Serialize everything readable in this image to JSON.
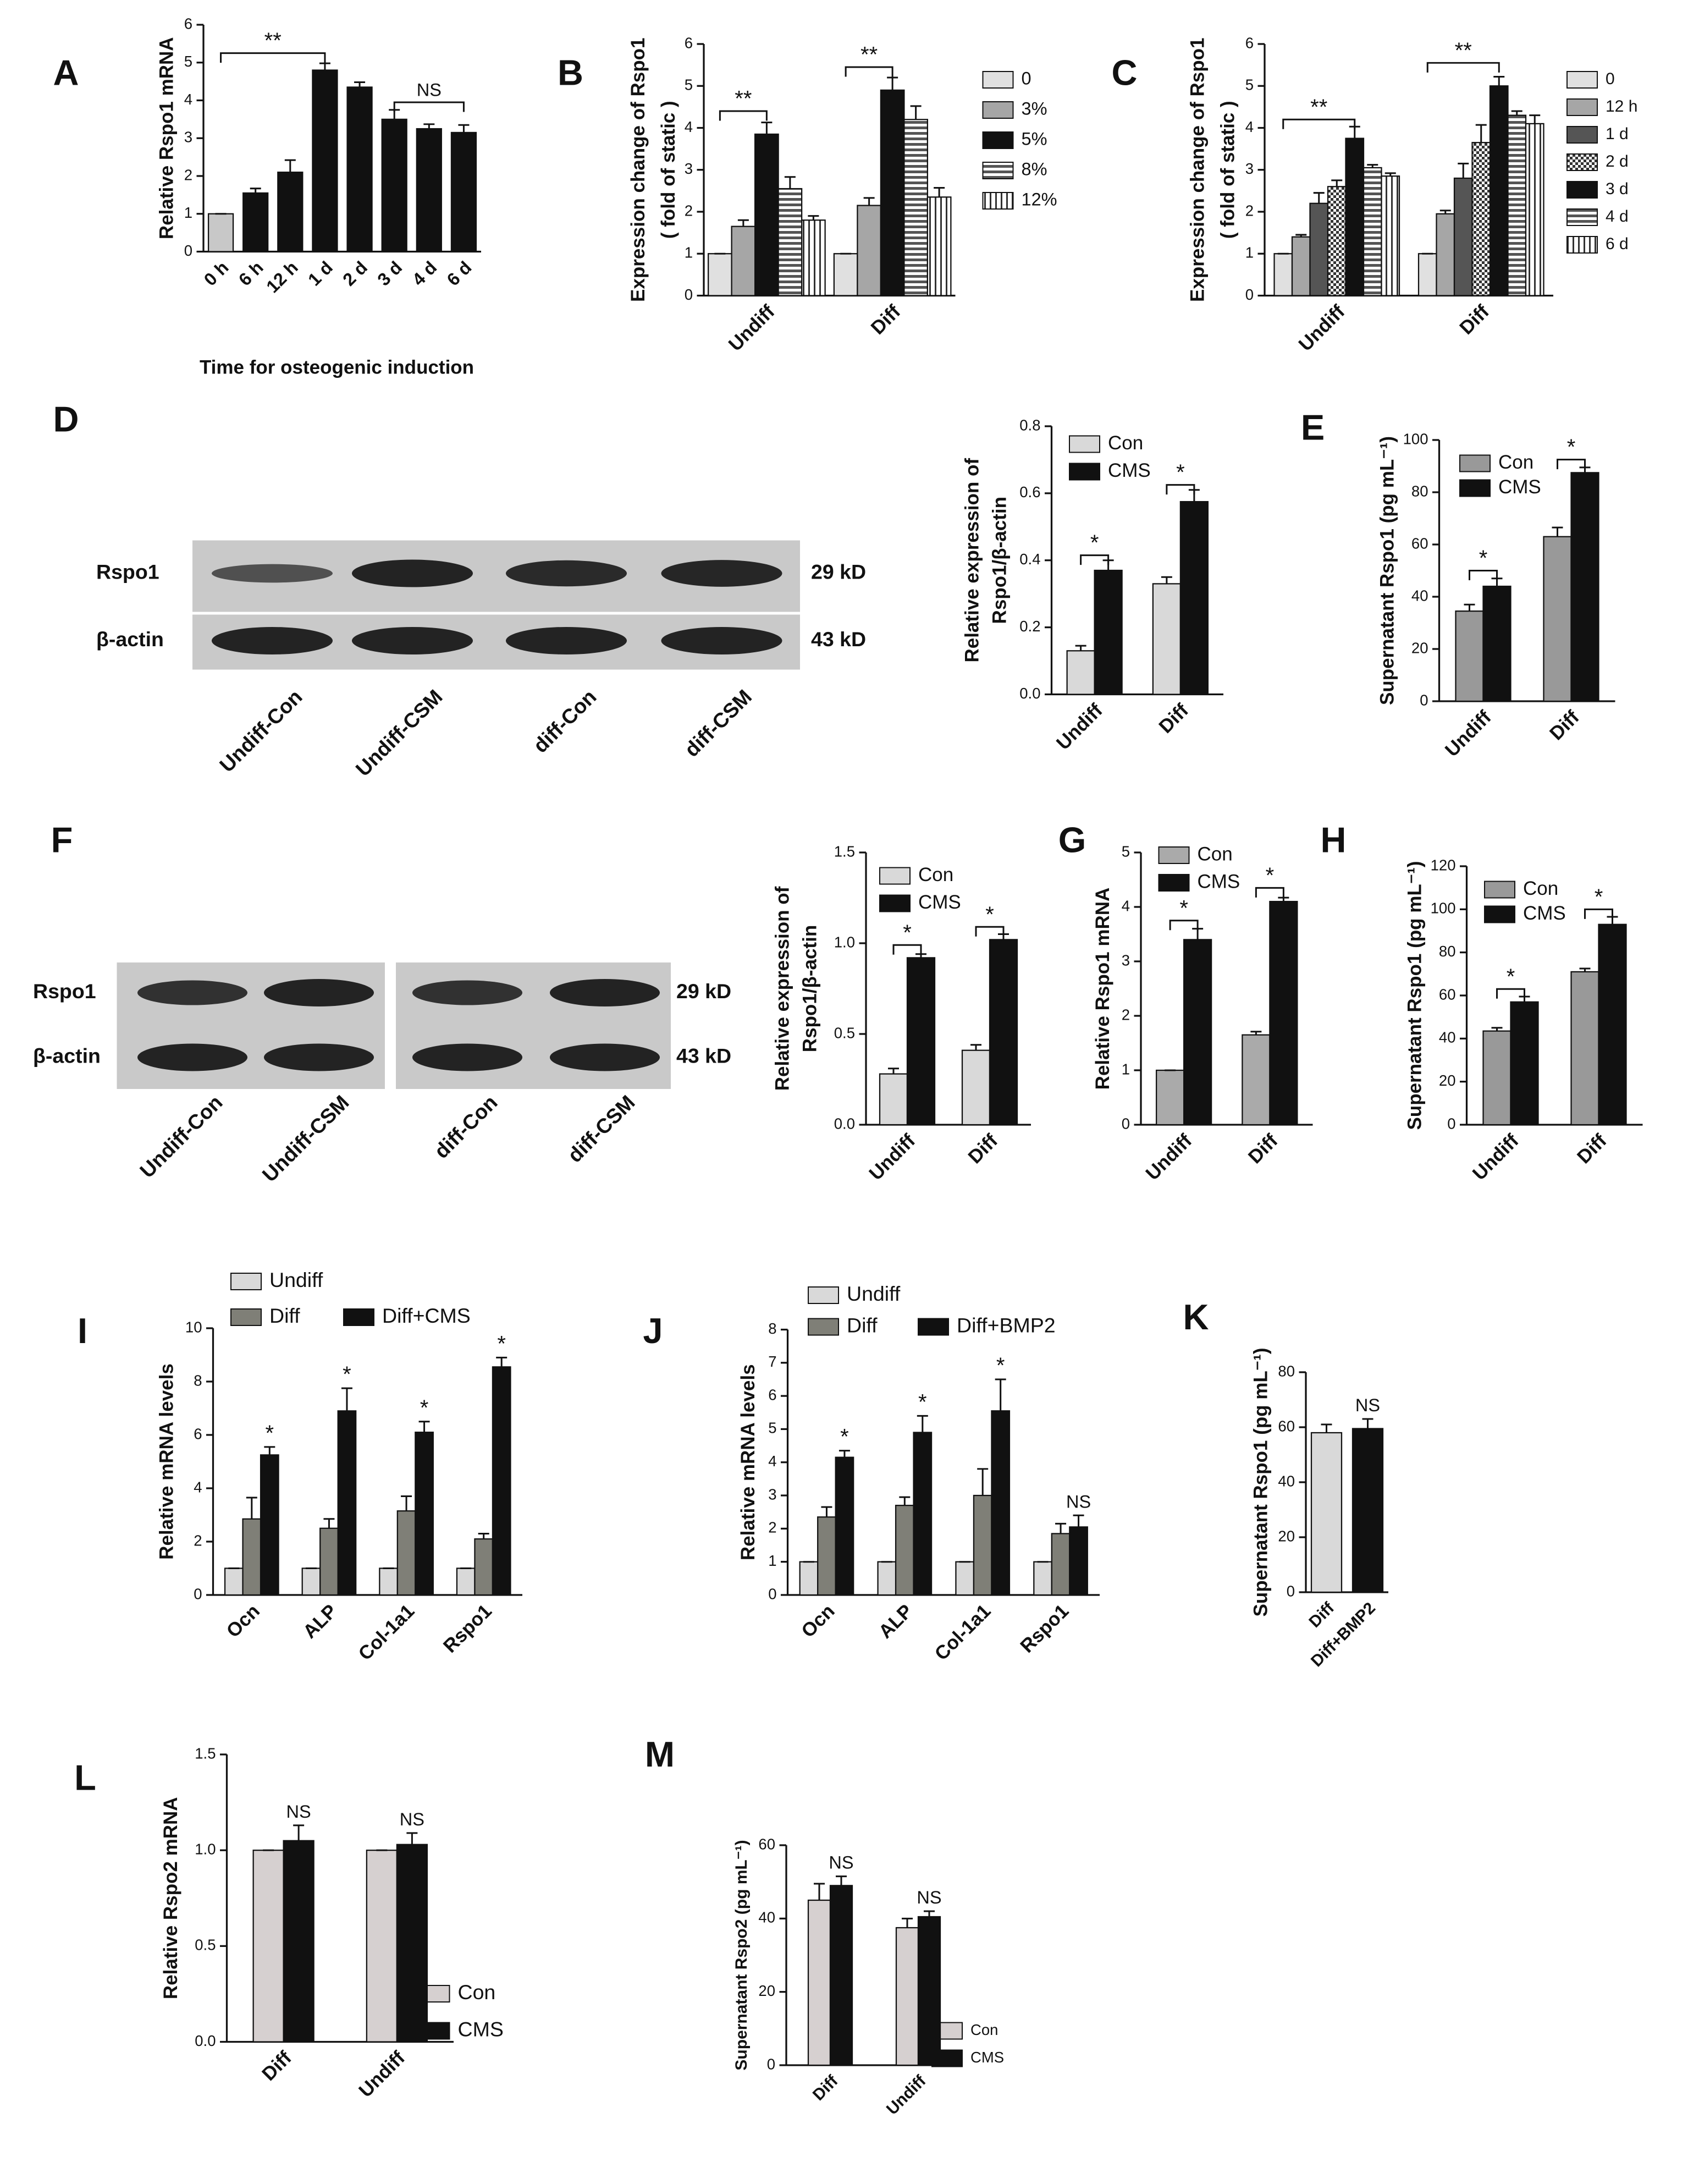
{
  "chart_data": [
    {
      "type": "bar",
      "panel": "A",
      "ylabel": "Relative Rspo1 mRNA",
      "xlabel": "Time for osteogenic induction",
      "categories": [
        "0 h",
        "6 h",
        "12 h",
        "1 d",
        "2 d",
        "3 d",
        "4 d",
        "6 d"
      ],
      "values": [
        1,
        1.55,
        2.1,
        4.8,
        4.35,
        3.5,
        3.25,
        3.15
      ],
      "errors": [
        0,
        0.12,
        0.32,
        0.18,
        0.13,
        0.25,
        0.12,
        0.2
      ],
      "colors": [
        "#c8c8c8",
        "#111111",
        "#111111",
        "#111111",
        "#111111",
        "#111111",
        "#111111",
        "#111111"
      ],
      "ylim": [
        0,
        6
      ],
      "yticks": [
        0,
        1,
        2,
        3,
        4,
        5,
        6
      ],
      "annotations": [
        "**",
        "NS"
      ]
    },
    {
      "type": "bar",
      "panel": "B",
      "ylabel": [
        "Expression change of Rspo1",
        "( fold of static )"
      ],
      "categories": [
        "Undiff",
        "Diff"
      ],
      "series": [
        {
          "name": "0",
          "color": "#e0e0e0",
          "values": [
            1,
            1
          ],
          "errors": [
            0,
            0
          ]
        },
        {
          "name": "3%",
          "color": "#a6a6a6",
          "values": [
            1.65,
            2.15
          ],
          "errors": [
            0.15,
            0.18
          ]
        },
        {
          "name": "5%",
          "color": "#111111",
          "values": [
            3.85,
            4.9
          ],
          "errors": [
            0.28,
            0.3
          ]
        },
        {
          "name": "8%",
          "color": "#777777",
          "hatch": "horizontal",
          "values": [
            2.55,
            4.2
          ],
          "errors": [
            0.28,
            0.32
          ]
        },
        {
          "name": "12%",
          "color": "#ffffff",
          "hatch": "vertical",
          "values": [
            1.8,
            2.35
          ],
          "errors": [
            0.1,
            0.22
          ]
        }
      ],
      "ylim": [
        0,
        6
      ],
      "yticks": [
        0,
        1,
        2,
        3,
        4,
        5,
        6
      ],
      "annotations": [
        "**",
        "**"
      ]
    },
    {
      "type": "bar",
      "panel": "C",
      "ylabel": [
        "Expression change of Rspo1",
        "( fold of static )"
      ],
      "categories": [
        "Undiff",
        "Diff"
      ],
      "series": [
        {
          "name": "0",
          "color": "#e0e0e0",
          "values": [
            1,
            1
          ],
          "errors": [
            0,
            0
          ]
        },
        {
          "name": "12 h",
          "color": "#a6a6a6",
          "values": [
            1.4,
            1.95
          ],
          "errors": [
            0.05,
            0.08
          ]
        },
        {
          "name": "1 d",
          "color": "#555555",
          "values": [
            2.2,
            2.8
          ],
          "errors": [
            0.25,
            0.35
          ]
        },
        {
          "name": "2 d",
          "color": "#888888",
          "hatch": "checker",
          "values": [
            2.6,
            3.65
          ],
          "errors": [
            0.15,
            0.42
          ]
        },
        {
          "name": "3 d",
          "color": "#111111",
          "values": [
            3.75,
            5.0
          ],
          "errors": [
            0.28,
            0.22
          ]
        },
        {
          "name": "4 d",
          "color": "#777777",
          "hatch": "horizontal",
          "values": [
            3.05,
            4.3
          ],
          "errors": [
            0.07,
            0.1
          ]
        },
        {
          "name": "6 d",
          "color": "#ffffff",
          "hatch": "vertical",
          "values": [
            2.85,
            4.1
          ],
          "errors": [
            0.07,
            0.2
          ]
        }
      ],
      "ylim": [
        0,
        6
      ],
      "yticks": [
        0,
        1,
        2,
        3,
        4,
        5,
        6
      ],
      "annotations": [
        "**",
        "**"
      ]
    },
    {
      "type": "bar",
      "ylabel": [
        "Relative expression of",
        "Rspo1/β-actin"
      ],
      "categories": [
        "Undiff",
        "Diff"
      ],
      "series": [
        {
          "name": "Con",
          "color": "#d9d9d9",
          "values": [
            0.13,
            0.33
          ],
          "errors": [
            0.015,
            0.02
          ]
        },
        {
          "name": "CMS",
          "color": "#111111",
          "values": [
            0.37,
            0.575
          ],
          "errors": [
            0.03,
            0.035
          ]
        }
      ],
      "ylim": [
        0,
        0.8
      ],
      "yticks": [
        {
          "value": 0,
          "label": "0.0"
        },
        0.2,
        0.4,
        0.6,
        0.8
      ],
      "annotations": [
        "*",
        "*"
      ]
    },
    {
      "type": "bar",
      "panel": "E",
      "ylabel": "Supernatant Rspo1 (pg mL⁻¹)",
      "categories": [
        "Undiff",
        "Diff"
      ],
      "series": [
        {
          "name": "Con",
          "color": "#999999",
          "values": [
            34.5,
            63
          ],
          "errors": [
            2.5,
            3.5
          ]
        },
        {
          "name": "CMS",
          "color": "#111111",
          "values": [
            44,
            87.5
          ],
          "errors": [
            3,
            2
          ]
        }
      ],
      "ylim": [
        0,
        100
      ],
      "yticks": [
        0,
        20,
        40,
        60,
        80,
        100
      ],
      "annotations": [
        "*",
        "*"
      ]
    },
    {
      "type": "bar",
      "ylabel": [
        "Relative expression of",
        "Rspo1/β-actin"
      ],
      "categories": [
        "Undiff",
        "Diff"
      ],
      "series": [
        {
          "name": "Con",
          "color": "#d9d9d9",
          "values": [
            0.28,
            0.41
          ],
          "errors": [
            0.03,
            0.03
          ]
        },
        {
          "name": "CMS",
          "color": "#111111",
          "values": [
            0.92,
            1.02
          ],
          "errors": [
            0.02,
            0.03
          ]
        }
      ],
      "ylim": [
        0,
        1.5
      ],
      "yticks": [
        {
          "value": 0,
          "label": "0.0"
        },
        0.5,
        {
          "value": 1,
          "label": "1.0"
        },
        1.5
      ],
      "annotations": [
        "*",
        "*"
      ]
    },
    {
      "type": "bar",
      "panel": "G",
      "ylabel": "Relative Rspo1 mRNA",
      "categories": [
        "Undiff",
        "Diff"
      ],
      "series": [
        {
          "name": "Con",
          "color": "#aaaaaa",
          "values": [
            1,
            1.65
          ],
          "errors": [
            0,
            0.06
          ]
        },
        {
          "name": "CMS",
          "color": "#111111",
          "values": [
            3.4,
            4.1
          ],
          "errors": [
            0.2,
            0.07
          ]
        }
      ],
      "ylim": [
        0,
        5
      ],
      "yticks": [
        0,
        1,
        2,
        3,
        4,
        5
      ],
      "annotations": [
        "*",
        "*"
      ]
    },
    {
      "type": "bar",
      "panel": "H",
      "ylabel": "Supernatant Rspo1 (pg mL⁻¹)",
      "categories": [
        "Undiff",
        "Diff"
      ],
      "series": [
        {
          "name": "Con",
          "color": "#999999",
          "values": [
            43.5,
            71
          ],
          "errors": [
            1.5,
            1.5
          ]
        },
        {
          "name": "CMS",
          "color": "#111111",
          "values": [
            57,
            93
          ],
          "errors": [
            2.5,
            3.5
          ]
        }
      ],
      "ylim": [
        0,
        120
      ],
      "yticks": [
        0,
        20,
        40,
        60,
        80,
        100,
        120
      ],
      "annotations": [
        "*",
        "*"
      ]
    },
    {
      "type": "bar",
      "panel": "I",
      "ylabel": "Relative mRNA levels",
      "categories": [
        "Ocn",
        "ALP",
        "Col-1a1",
        "Rspo1"
      ],
      "series": [
        {
          "name": "Undiff",
          "color": "#d9d9d9",
          "values": [
            1,
            1,
            1,
            1
          ],
          "errors": [
            0,
            0,
            0,
            0
          ]
        },
        {
          "name": "Diff",
          "color": "#7f7f77",
          "values": [
            2.85,
            2.5,
            3.15,
            2.1
          ],
          "errors": [
            0.8,
            0.35,
            0.55,
            0.2
          ]
        },
        {
          "name": "Diff+CMS",
          "color": "#111111",
          "values": [
            5.25,
            6.9,
            6.1,
            8.55
          ],
          "errors": [
            0.3,
            0.85,
            0.4,
            0.35
          ]
        }
      ],
      "ylim": [
        0,
        10
      ],
      "yticks": [
        0,
        2,
        4,
        6,
        8,
        10
      ],
      "annotations": [
        "*",
        "*",
        "*",
        "*"
      ]
    },
    {
      "type": "bar",
      "panel": "J",
      "ylabel": "Relative mRNA levels",
      "categories": [
        "Ocn",
        "ALP",
        "Col-1a1",
        "Rspo1"
      ],
      "series": [
        {
          "name": "Undiff",
          "color": "#d9d9d9",
          "values": [
            1,
            1,
            1,
            1
          ],
          "errors": [
            0,
            0,
            0,
            0
          ]
        },
        {
          "name": "Diff",
          "color": "#7f7f77",
          "values": [
            2.35,
            2.7,
            3.0,
            1.85
          ],
          "errors": [
            0.3,
            0.25,
            0.8,
            0.3
          ]
        },
        {
          "name": "Diff+BMP2",
          "color": "#111111",
          "values": [
            4.15,
            4.9,
            5.55,
            2.05
          ],
          "errors": [
            0.2,
            0.5,
            0.95,
            0.35
          ]
        }
      ],
      "ylim": [
        0,
        8
      ],
      "yticks": [
        0,
        1,
        2,
        3,
        4,
        5,
        6,
        7,
        8
      ],
      "annotations": [
        "*",
        "*",
        "*",
        "NS"
      ]
    },
    {
      "type": "bar",
      "panel": "K",
      "ylabel": "Supernatant Rspo1 (pg mL⁻¹)",
      "categories": [
        "Diff",
        "Diff+BMP2"
      ],
      "values": [
        58,
        59.5
      ],
      "errors": [
        3,
        3.5
      ],
      "colors": [
        "#d9d9d9",
        "#111111"
      ],
      "ylim": [
        0,
        80
      ],
      "yticks": [
        0,
        20,
        40,
        60,
        80
      ],
      "annotations": [
        "NS"
      ]
    },
    {
      "type": "bar",
      "panel": "L",
      "ylabel": "Relative Rspo2 mRNA",
      "categories": [
        "Diff",
        "Undiff"
      ],
      "series": [
        {
          "name": "Con",
          "color": "#d6d0d0",
          "values": [
            1,
            1
          ],
          "errors": [
            0,
            0
          ]
        },
        {
          "name": "CMS",
          "color": "#111111",
          "values": [
            1.05,
            1.03
          ],
          "errors": [
            0.08,
            0.06
          ]
        }
      ],
      "ylim": [
        0,
        1.5
      ],
      "yticks": [
        {
          "value": 0,
          "label": "0.0"
        },
        0.5,
        {
          "value": 1,
          "label": "1.0"
        },
        1.5
      ],
      "annotations": [
        "NS",
        "NS"
      ]
    },
    {
      "type": "bar",
      "panel": "M",
      "ylabel": "Supernatant Rspo2 (pg mL⁻¹)",
      "categories": [
        "Diff",
        "Undiff"
      ],
      "series": [
        {
          "name": "Con",
          "color": "#d6d0d0",
          "values": [
            45,
            37.5
          ],
          "errors": [
            4.5,
            2.5
          ]
        },
        {
          "name": "CMS",
          "color": "#111111",
          "values": [
            49,
            40.5
          ],
          "errors": [
            2.5,
            1.5
          ]
        }
      ],
      "ylim": [
        0,
        60
      ],
      "yticks": [
        0,
        20,
        40,
        60
      ],
      "annotations": [
        "NS",
        "NS"
      ]
    }
  ],
  "blots": [
    {
      "panel": "D",
      "rows": [
        "Rspo1",
        "β-actin"
      ],
      "sizes": [
        "29 kD",
        "43 kD"
      ],
      "lanes": [
        "Undiff-Con",
        "Undiff-CSM",
        "diff-Con",
        "diff-CSM"
      ]
    },
    {
      "panel": "F",
      "rows": [
        "Rspo1",
        "β-actin"
      ],
      "sizes": [
        "29 kD",
        "43 kD"
      ],
      "lanes": [
        "Undiff-Con",
        "Undiff-CSM",
        "diff-Con",
        "diff-CSM"
      ]
    }
  ]
}
